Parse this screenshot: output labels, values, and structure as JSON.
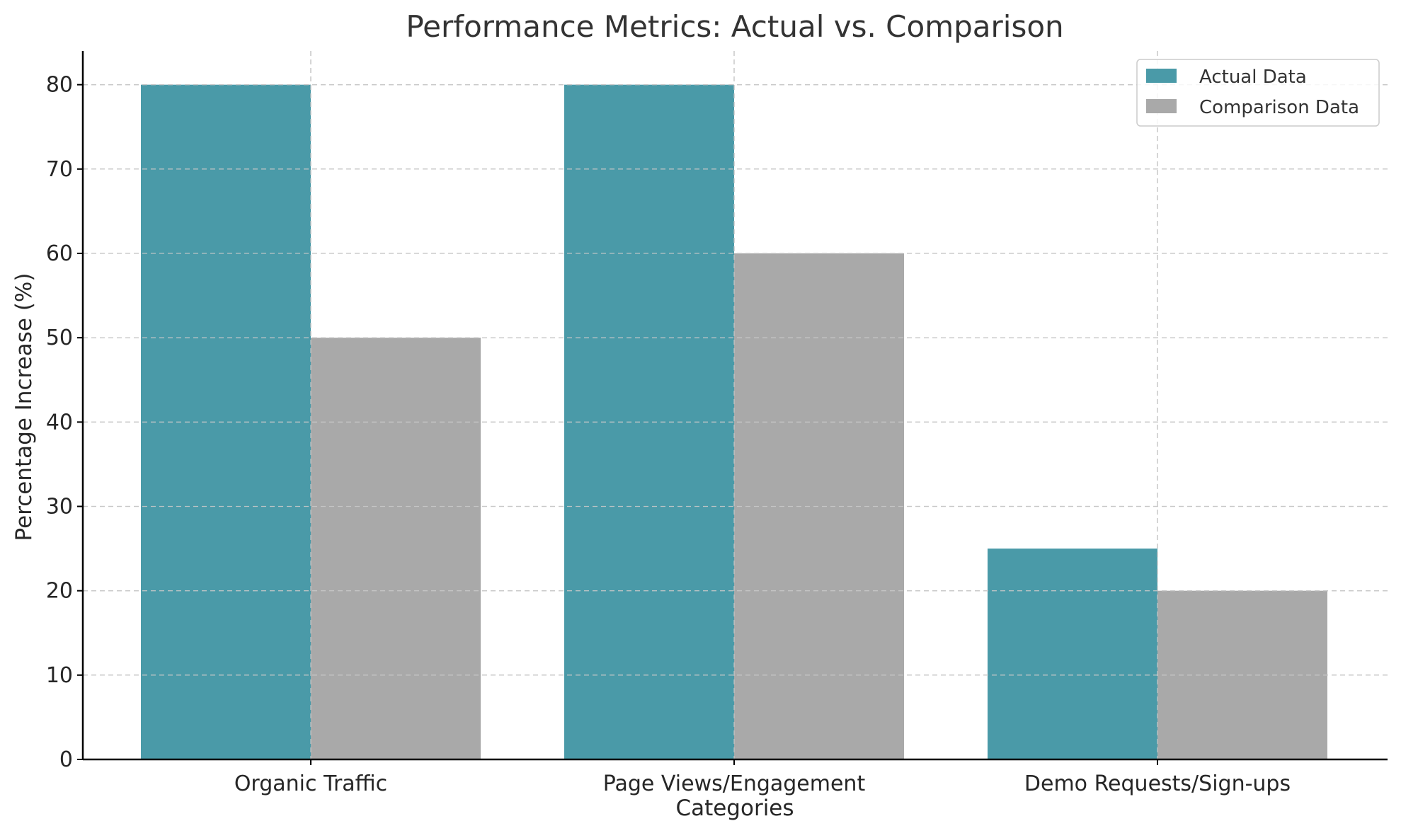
{
  "chart_data": {
    "type": "bar",
    "title": "Performance Metrics: Actual vs. Comparison",
    "xlabel": "Categories",
    "ylabel": "Percentage Increase (%)",
    "categories": [
      "Organic Traffic",
      "Page Views/Engagement",
      "Demo Requests/Sign-ups"
    ],
    "series": [
      {
        "name": "Actual Data",
        "values": [
          80,
          80,
          25
        ],
        "color": "#4a9aa8"
      },
      {
        "name": "Comparison Data",
        "values": [
          50,
          60,
          20
        ],
        "color": "#a9a9a9"
      }
    ],
    "ylim": [
      0,
      84
    ],
    "yticks": [
      0,
      10,
      20,
      30,
      40,
      50,
      60,
      70,
      80
    ],
    "grid": true,
    "legend_position": "top-right"
  }
}
